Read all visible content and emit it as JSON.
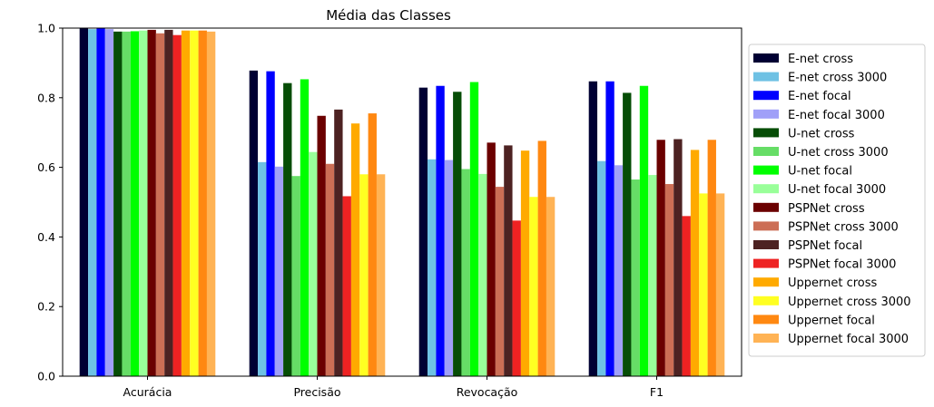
{
  "chart_data": {
    "type": "bar",
    "title": "Média das Classes",
    "xlabel": "",
    "ylabel": "",
    "categories": [
      "Acurácia",
      "Precisão",
      "Revocação",
      "F1"
    ],
    "ylim": [
      0,
      1.0
    ],
    "yticks": [
      "0.0",
      "0.2",
      "0.4",
      "0.6",
      "0.8",
      "1.0"
    ],
    "grid": false,
    "legend_position": "right",
    "series": [
      {
        "name": "E-net cross",
        "color": "#000033",
        "values": [
          1.0,
          0.878,
          0.829,
          0.847
        ]
      },
      {
        "name": "E-net cross 3000",
        "color": "#6ec1e4",
        "values": [
          0.997,
          0.615,
          0.623,
          0.618
        ]
      },
      {
        "name": "E-net focal",
        "color": "#0000ff",
        "values": [
          1.0,
          0.876,
          0.834,
          0.847
        ]
      },
      {
        "name": "E-net focal 3000",
        "color": "#a0a0f8",
        "values": [
          0.997,
          0.602,
          0.621,
          0.606
        ]
      },
      {
        "name": "U-net cross",
        "color": "#064d06",
        "values": [
          0.99,
          0.842,
          0.817,
          0.814
        ]
      },
      {
        "name": "U-net cross 3000",
        "color": "#66dd66",
        "values": [
          0.99,
          0.575,
          0.595,
          0.565
        ]
      },
      {
        "name": "U-net focal",
        "color": "#00ff00",
        "values": [
          0.991,
          0.853,
          0.845,
          0.834
        ]
      },
      {
        "name": "U-net focal 3000",
        "color": "#99ff99",
        "values": [
          0.993,
          0.644,
          0.581,
          0.578
        ]
      },
      {
        "name": "PSPNet cross",
        "color": "#6b0000",
        "values": [
          0.995,
          0.748,
          0.671,
          0.679
        ]
      },
      {
        "name": "PSPNet cross 3000",
        "color": "#cc6e55",
        "values": [
          0.985,
          0.61,
          0.544,
          0.552
        ]
      },
      {
        "name": "PSPNet focal",
        "color": "#4d2222",
        "values": [
          0.995,
          0.766,
          0.663,
          0.681
        ]
      },
      {
        "name": "PSPNet focal 3000",
        "color": "#ee2222",
        "values": [
          0.98,
          0.517,
          0.447,
          0.46
        ]
      },
      {
        "name": "Uppernet cross",
        "color": "#ffaa00",
        "values": [
          0.993,
          0.726,
          0.648,
          0.65
        ]
      },
      {
        "name": "Uppernet cross 3000",
        "color": "#ffff22",
        "values": [
          0.993,
          0.58,
          0.515,
          0.525
        ]
      },
      {
        "name": "Uppernet focal",
        "color": "#ff8811",
        "values": [
          0.993,
          0.755,
          0.676,
          0.679
        ]
      },
      {
        "name": "Uppernet focal 3000",
        "color": "#ffb355",
        "values": [
          0.99,
          0.58,
          0.515,
          0.525
        ]
      }
    ]
  }
}
